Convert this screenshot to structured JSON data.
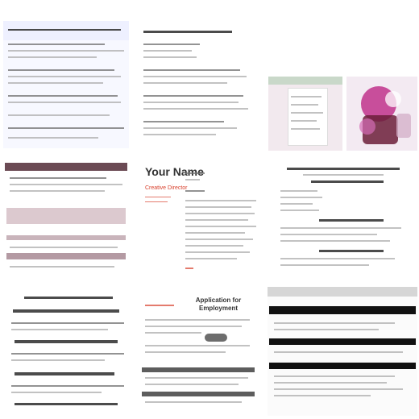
{
  "colors": {
    "resume_red": "#d9432f",
    "maroon_band": "#6b4a54",
    "rose_band": "#dcc9cf",
    "black_band": "#111111",
    "magenta_art": "#c0338c"
  },
  "thumbs": {
    "resume_name": "Your Name",
    "resume_role": "Creative Director",
    "app_title": "Application for Employment"
  }
}
